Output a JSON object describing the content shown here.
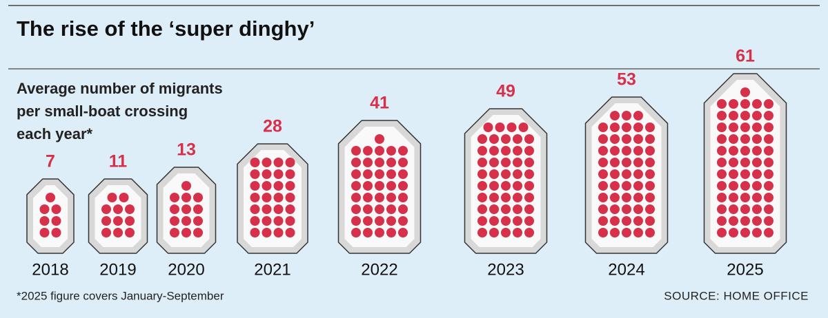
{
  "chart_data": {
    "type": "pictogram",
    "title": "The rise of the ‘super dinghy’",
    "subtitle": [
      "Average number of migrants",
      "per small-boat crossing",
      "each year*"
    ],
    "categories": [
      "2018",
      "2019",
      "2020",
      "2021",
      "2022",
      "2023",
      "2024",
      "2025"
    ],
    "values": [
      7,
      11,
      13,
      28,
      41,
      49,
      53,
      61
    ],
    "color": "#d6304a",
    "note": "*2025 figure covers January-September",
    "source": "SOURCE: HOME OFFICE"
  }
}
